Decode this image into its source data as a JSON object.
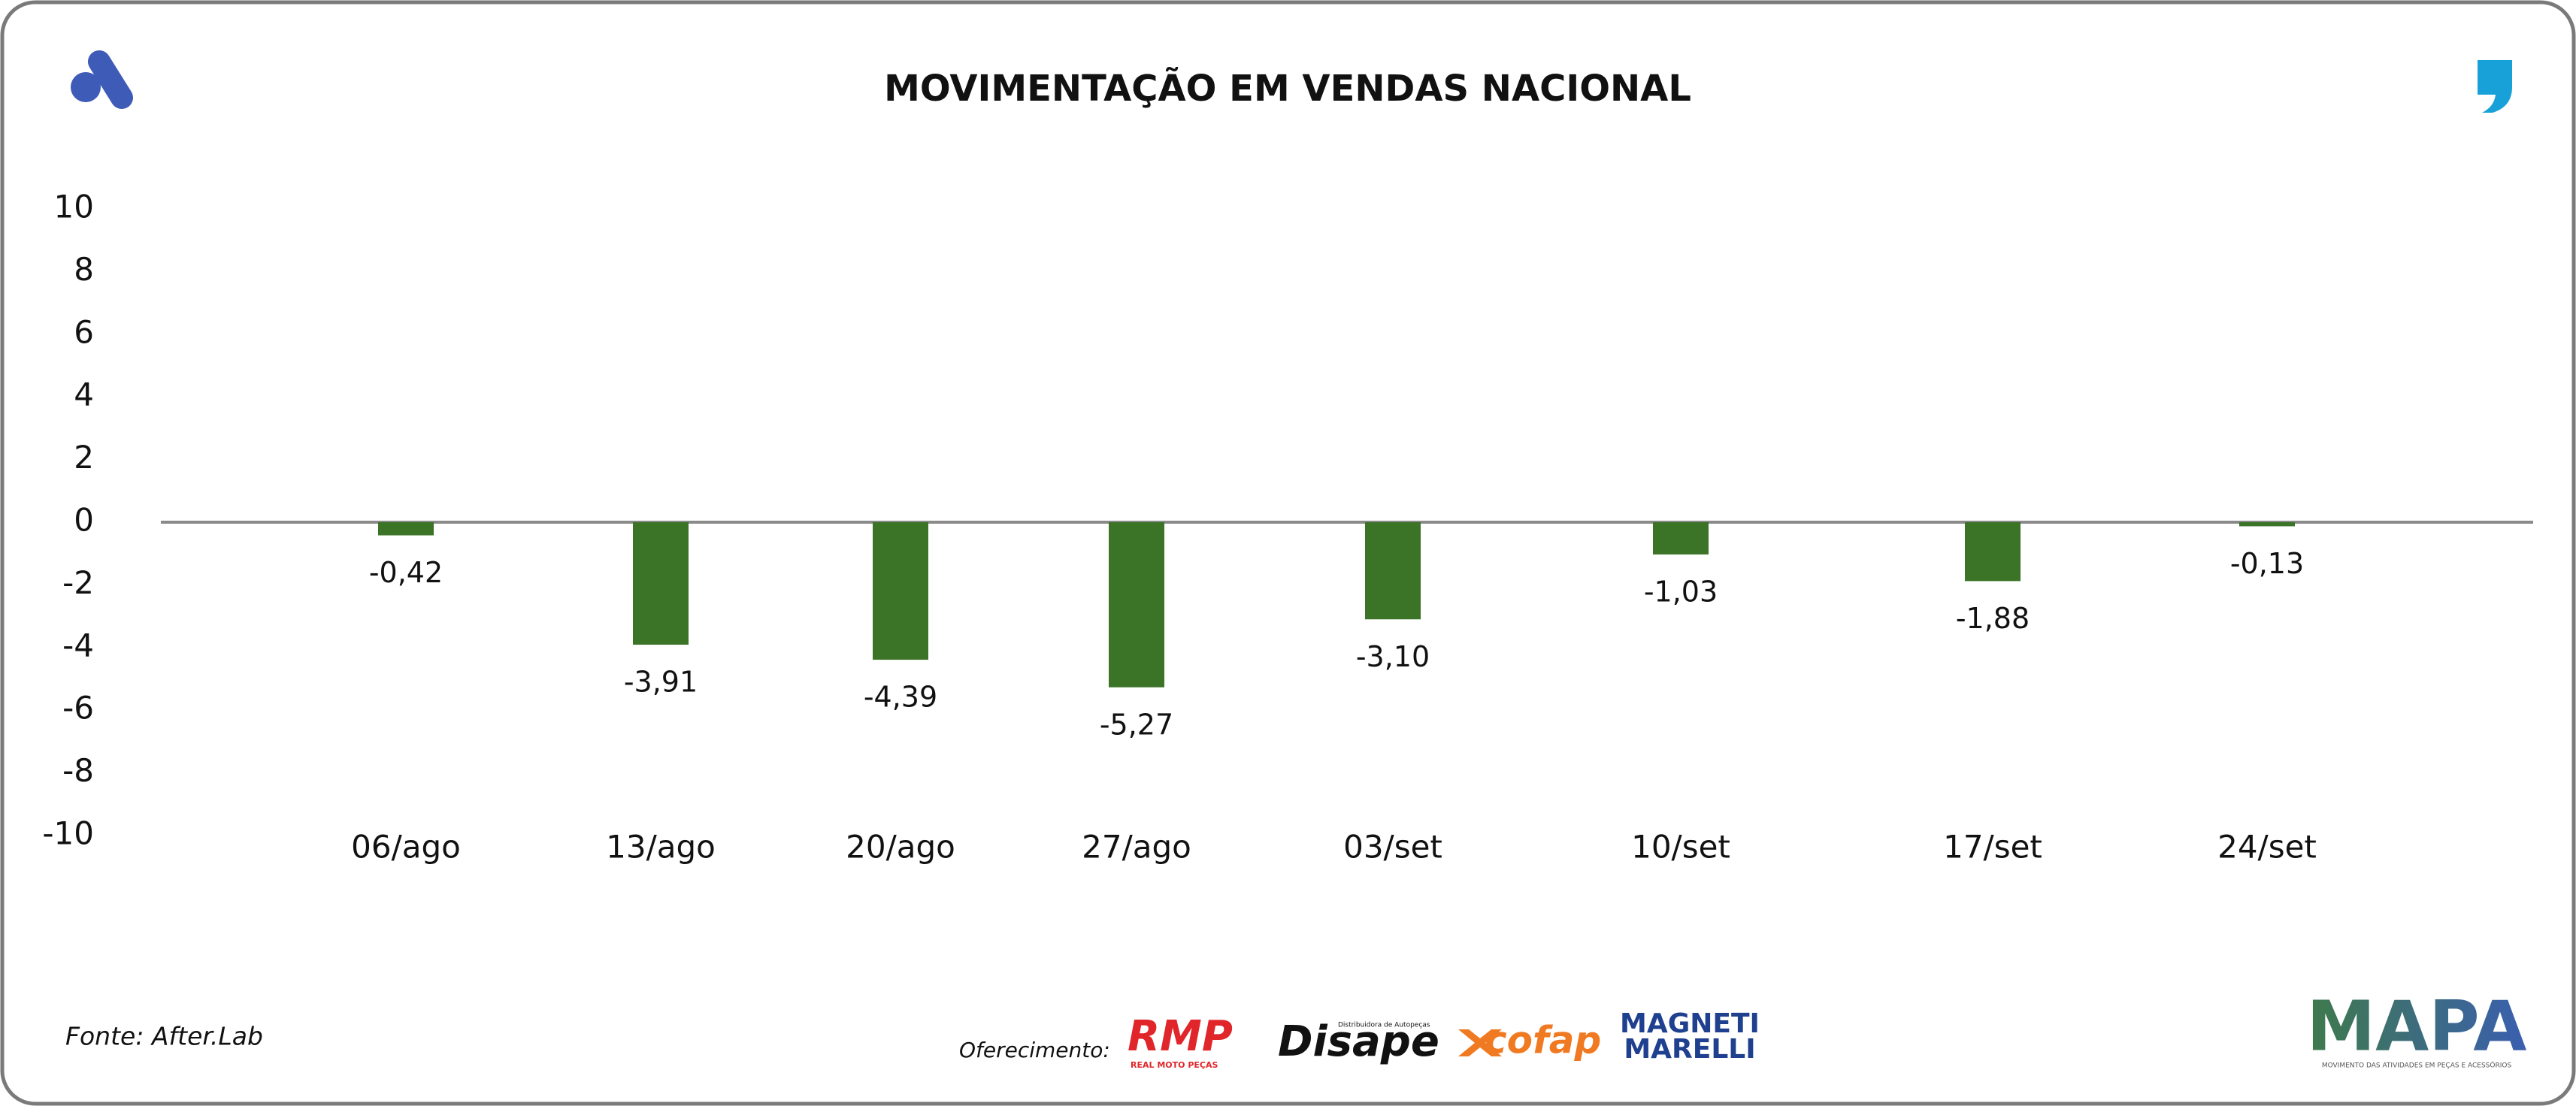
{
  "chart_data": {
    "type": "bar",
    "title": "MOVIMENTAÇÃO EM VENDAS NACIONAL",
    "categories": [
      "06/ago",
      "13/ago",
      "20/ago",
      "27/ago",
      "03/set",
      "10/set",
      "17/set",
      "24/set"
    ],
    "values": [
      -0.42,
      -3.91,
      -4.39,
      -5.27,
      -3.1,
      -1.03,
      -1.88,
      -0.13
    ],
    "value_labels": [
      "-0,42",
      "-3,91",
      "-4,39",
      "-5,27",
      "-3,10",
      "-1,03",
      "-1,88",
      "-0,13"
    ],
    "color": "#3b7327",
    "ylim": [
      -10,
      10
    ],
    "yticks": [
      10,
      8,
      6,
      4,
      2,
      0,
      -2,
      -4,
      -6,
      -8,
      -10
    ],
    "grid": false
  },
  "footer": {
    "source": "Fonte: After.Lab",
    "sponsor_label": "Oferecimento:",
    "sponsors": [
      "RMP",
      "REAL MOTO PEÇAS",
      "Disape",
      "Distribuidora de Autopeças",
      "cofap",
      "MAGNETI",
      "MARELLI"
    ],
    "brand": "MAPA",
    "brand_tagline": "MOVIMENTO DAS ATIVIDADES EM PEÇAS E ACESSÓRIOS"
  }
}
